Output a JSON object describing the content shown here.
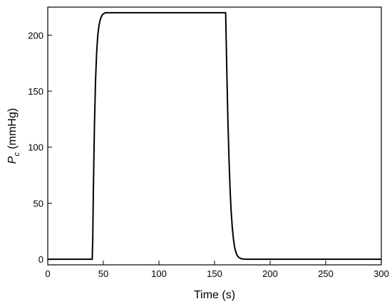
{
  "chart_data": {
    "type": "line",
    "title": "",
    "xlabel": "Time (s)",
    "ylabel": {
      "symbol": "P",
      "subscript": "c",
      "unit": " (mmHg)"
    },
    "xlim": [
      0,
      300
    ],
    "ylim": [
      -5,
      225
    ],
    "xticks": [
      0,
      50,
      100,
      150,
      200,
      250,
      300
    ],
    "yticks": [
      0,
      50,
      100,
      150,
      200
    ],
    "grid": false,
    "legend": "none",
    "line_color": "#000000",
    "series": [
      {
        "x": [
          0,
          40,
          40.5,
          41,
          42,
          43,
          44,
          45,
          46,
          47,
          48,
          49,
          50,
          52,
          55,
          160,
          160.5,
          161,
          162,
          163,
          164,
          165,
          166,
          167,
          168,
          169,
          170,
          171,
          172,
          173,
          174,
          175,
          177,
          180,
          185,
          300
        ],
        "y": [
          0,
          0,
          20,
          60,
          120,
          160,
          185,
          200,
          208,
          213,
          216,
          218,
          219,
          220,
          220,
          220,
          195,
          170,
          125,
          90,
          62,
          42,
          28,
          18,
          11,
          7,
          4,
          2.5,
          1.5,
          1,
          0.5,
          0.3,
          0.1,
          0,
          0,
          0
        ]
      }
    ]
  }
}
